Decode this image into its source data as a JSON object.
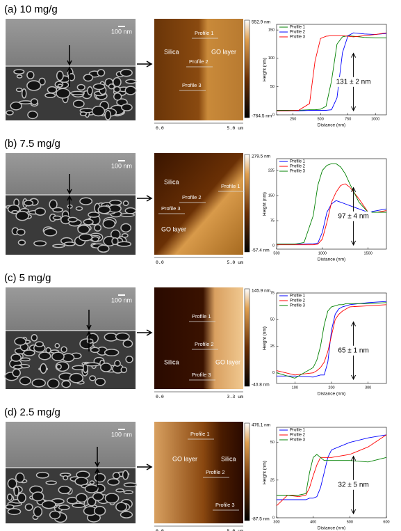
{
  "panels": [
    {
      "label": "(a) 10 mg/g",
      "sem_scale": "100 nm",
      "afm": {
        "max": "552.9 nm",
        "min": "-764.5 nm",
        "x_start": "0.0",
        "x_end": "5.0 um",
        "silica": "Silica",
        "go": "GO layer",
        "profiles": [
          "Profile 1",
          "Profile 2",
          "Profile 3"
        ]
      }
    },
    {
      "label": "(b) 7.5 mg/g",
      "sem_scale": "100 nm",
      "afm": {
        "max": "279.5 nm",
        "min": "-57.4 nm",
        "x_start": "0.0",
        "x_end": "5.0 um",
        "silica": "Silica",
        "go": "GO layer",
        "profiles": [
          "Profile 1",
          "Profile 2",
          "Profile 3"
        ]
      }
    },
    {
      "label": "(c) 5 mg/g",
      "sem_scale": "100 nm",
      "afm": {
        "max": "145.9 nm",
        "min": "-40.8 nm",
        "x_start": "0.0",
        "x_end": "3.3 um",
        "silica": "Silica",
        "go": "GO layer",
        "profiles": [
          "Profile 1",
          "Profile 2",
          "Profile 3"
        ]
      }
    },
    {
      "label": "(d) 2.5 mg/g",
      "sem_scale": "100 nm",
      "afm": {
        "max": "476.1 nm",
        "min": "-87.5 nm",
        "x_start": "0.0",
        "x_end": "5.0 um",
        "silica": "Silica",
        "go": "GO layer",
        "profiles": [
          "Profile 1",
          "Profile 2",
          "Profile 3"
        ]
      }
    }
  ],
  "chart_data": [
    {
      "type": "line",
      "x_label": "Distance (nm)",
      "y_label": "Height (nm)",
      "annotation": "131 ± 2 nm",
      "xlim": [
        100,
        1100
      ],
      "xticks": [
        250,
        500,
        750,
        1000
      ],
      "ylim": [
        0,
        160
      ],
      "yticks": [
        0,
        50,
        100,
        150
      ],
      "x": [
        100,
        200,
        300,
        400,
        450,
        500,
        550,
        600,
        650,
        700,
        750,
        800,
        900,
        1000,
        1100
      ],
      "series": [
        {
          "name": "Profile 1",
          "color": "#008000",
          "values": [
            8,
            8,
            8,
            9,
            9,
            10,
            15,
            60,
            125,
            138,
            140,
            139,
            137,
            136,
            136
          ]
        },
        {
          "name": "Profile 2",
          "color": "#0000ff",
          "values": [
            7,
            7,
            7,
            8,
            8,
            8,
            8,
            9,
            30,
            110,
            140,
            145,
            143,
            142,
            144
          ]
        },
        {
          "name": "Profile 3",
          "color": "#ff0000",
          "values": [
            7,
            7,
            8,
            20,
            95,
            135,
            139,
            140,
            140,
            140,
            139,
            138,
            140,
            142,
            145
          ]
        }
      ]
    },
    {
      "type": "line",
      "x_label": "Distance (nm)",
      "y_label": "Height (nm)",
      "annotation": "97 ± 4 nm",
      "xlim": [
        500,
        1700
      ],
      "xticks": [
        500,
        1000,
        1500
      ],
      "ylim": [
        -10,
        260
      ],
      "yticks": [
        0,
        75,
        150,
        225
      ],
      "x": [
        500,
        700,
        800,
        900,
        950,
        1000,
        1050,
        1100,
        1150,
        1200,
        1250,
        1300,
        1400,
        1500,
        1600,
        1700
      ],
      "series": [
        {
          "name": "Profile 1",
          "color": "#0000ff",
          "values": [
            5,
            5,
            5,
            6,
            8,
            40,
            100,
            125,
            135,
            130,
            125,
            120,
            110,
            100,
            105,
            110
          ]
        },
        {
          "name": "Profile 2",
          "color": "#ff0000",
          "values": [
            3,
            3,
            3,
            3,
            5,
            20,
            70,
            130,
            160,
            180,
            185,
            175,
            140,
            100,
            100,
            105
          ]
        },
        {
          "name": "Profile 3",
          "color": "#008000",
          "values": [
            5,
            5,
            10,
            90,
            180,
            225,
            240,
            245,
            245,
            235,
            215,
            185,
            130,
            100,
            100,
            100
          ]
        }
      ]
    },
    {
      "type": "line",
      "x_label": "Distance (nm)",
      "y_label": "Height (nm)",
      "annotation": "65 ± 1 nm",
      "xlim": [
        50,
        350
      ],
      "xticks": [
        100,
        200,
        300
      ],
      "ylim": [
        -10,
        75
      ],
      "yticks": [
        0,
        25,
        50,
        75
      ],
      "x": [
        50,
        100,
        150,
        160,
        170,
        180,
        190,
        200,
        210,
        220,
        230,
        240,
        250,
        300,
        350
      ],
      "series": [
        {
          "name": "Profile 1",
          "color": "#0000ff",
          "values": [
            -3,
            -3,
            -4,
            -3,
            -2,
            -2,
            10,
            40,
            55,
            60,
            62,
            63,
            64,
            66,
            67
          ]
        },
        {
          "name": "Profile 2",
          "color": "#ff0000",
          "values": [
            2,
            -2,
            0,
            2,
            5,
            10,
            20,
            35,
            50,
            55,
            58,
            60,
            62,
            63,
            64
          ]
        },
        {
          "name": "Profile 3",
          "color": "#008000",
          "values": [
            0,
            -5,
            5,
            12,
            25,
            45,
            58,
            62,
            63,
            64,
            64,
            65,
            65,
            65,
            66
          ]
        }
      ]
    },
    {
      "type": "line",
      "x_label": "Distance (nm)",
      "y_label": "Height (nm)",
      "annotation": "32 ± 5 nm",
      "xlim": [
        300,
        600
      ],
      "xticks": [
        300,
        400,
        500,
        600
      ],
      "ylim": [
        0,
        60
      ],
      "yticks": [
        0,
        25,
        50
      ],
      "x": [
        300,
        330,
        360,
        380,
        390,
        400,
        410,
        420,
        430,
        440,
        450,
        500,
        550,
        600
      ],
      "series": [
        {
          "name": "Profile 1",
          "color": "#0000ff",
          "values": [
            12,
            12,
            12,
            12,
            13,
            13,
            14,
            20,
            30,
            40,
            45,
            50,
            53,
            55
          ]
        },
        {
          "name": "Profile 2",
          "color": "#ff0000",
          "values": [
            8,
            15,
            14,
            15,
            20,
            28,
            35,
            40,
            40,
            40,
            40,
            42,
            47,
            55
          ]
        },
        {
          "name": "Profile 3",
          "color": "#008000",
          "values": [
            15,
            15,
            15,
            16,
            30,
            40,
            42,
            40,
            38,
            38,
            38,
            38,
            37,
            40
          ]
        }
      ]
    }
  ]
}
